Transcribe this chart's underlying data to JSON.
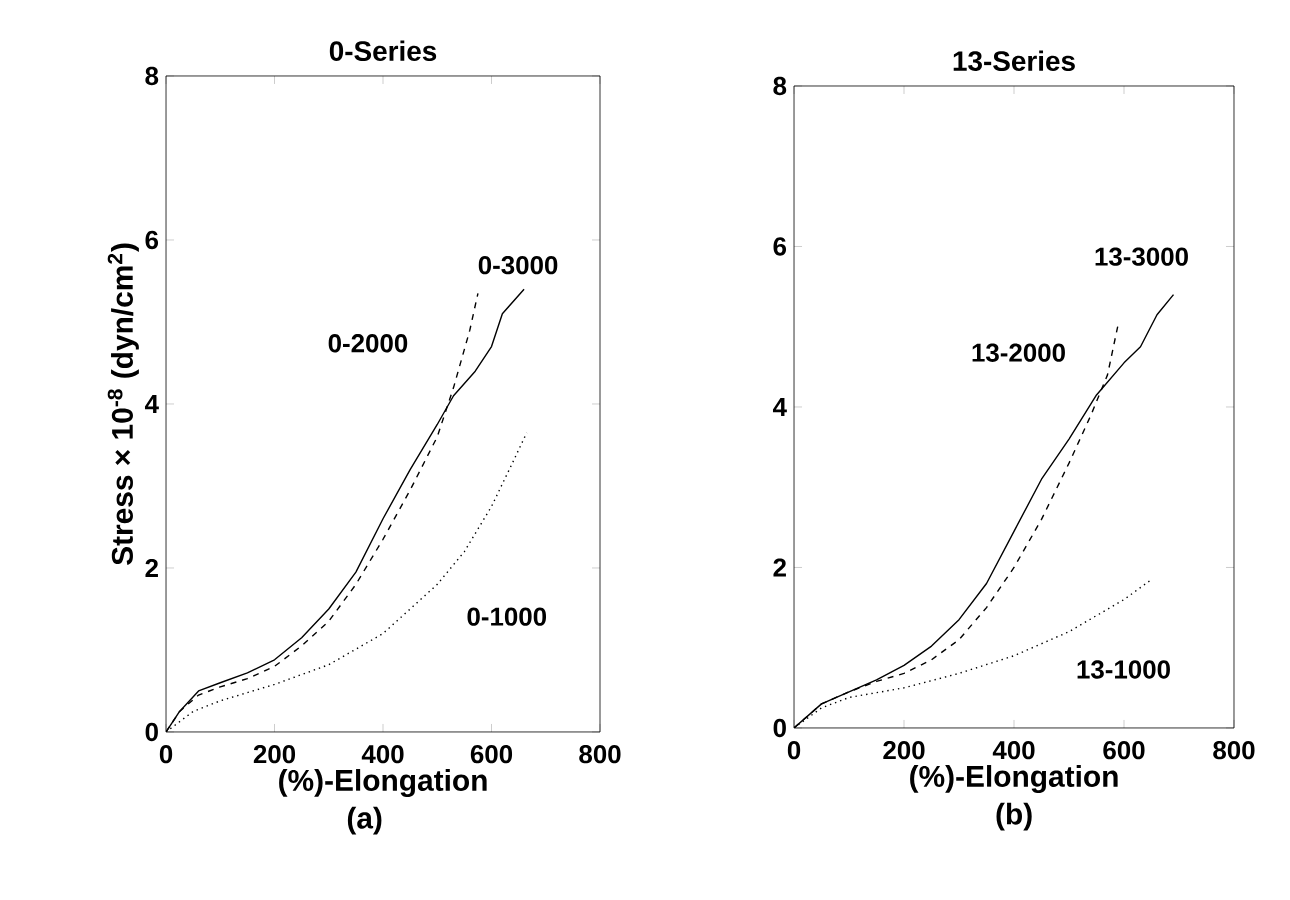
{
  "chart_data": [
    {
      "type": "line",
      "title": "0-Series",
      "xlabel": "(%)-Elongation",
      "ylabel": "Stress × 10$^{-8}$ (dyn/cm$^{2}$)",
      "xlim": [
        0,
        800
      ],
      "ylim": [
        0,
        8
      ],
      "xticks": [
        0,
        200,
        400,
        600,
        800
      ],
      "yticks": [
        0,
        2,
        4,
        6,
        8
      ],
      "grid": false,
      "legend": false,
      "marker": "none",
      "series": [
        {
          "name": "0-3000",
          "color": "#000000",
          "line_style": "solid",
          "x": [
            0,
            25,
            60,
            100,
            150,
            200,
            250,
            300,
            350,
            400,
            450,
            500,
            530,
            570,
            600,
            620,
            660
          ],
          "values": [
            0,
            0.25,
            0.5,
            0.6,
            0.72,
            0.88,
            1.15,
            1.5,
            1.95,
            2.6,
            3.2,
            3.75,
            4.1,
            4.4,
            4.7,
            5.1,
            5.4
          ]
        },
        {
          "name": "0-2000",
          "color": "#000000",
          "line_style": "dashed",
          "x": [
            0,
            25,
            60,
            100,
            150,
            200,
            250,
            300,
            350,
            400,
            450,
            500,
            530,
            560,
            575
          ],
          "values": [
            0,
            0.25,
            0.45,
            0.55,
            0.65,
            0.8,
            1.05,
            1.35,
            1.8,
            2.35,
            2.95,
            3.6,
            4.2,
            4.9,
            5.35
          ]
        },
        {
          "name": "0-1000",
          "color": "#000000",
          "line_style": "dotted",
          "x": [
            0,
            50,
            100,
            200,
            300,
            400,
            500,
            550,
            600,
            640,
            665
          ],
          "values": [
            0,
            0.25,
            0.38,
            0.58,
            0.82,
            1.2,
            1.8,
            2.2,
            2.75,
            3.3,
            3.65
          ]
        }
      ],
      "annotations": [
        "(a)"
      ]
    },
    {
      "type": "line",
      "title": "13-Series",
      "xlabel": "(%)-Elongation",
      "xlim": [
        0,
        800
      ],
      "ylim": [
        0,
        8
      ],
      "xticks": [
        0,
        200,
        400,
        600,
        800
      ],
      "yticks": [
        0,
        2,
        4,
        6,
        8
      ],
      "grid": false,
      "legend": false,
      "marker": "none",
      "series": [
        {
          "name": "13-3000",
          "color": "#000000",
          "line_style": "solid",
          "x": [
            0,
            50,
            100,
            150,
            200,
            250,
            300,
            350,
            400,
            450,
            500,
            550,
            600,
            630,
            660,
            690
          ],
          "values": [
            0,
            0.3,
            0.45,
            0.6,
            0.78,
            1.02,
            1.35,
            1.8,
            2.45,
            3.1,
            3.6,
            4.15,
            4.55,
            4.75,
            5.15,
            5.4
          ]
        },
        {
          "name": "13-2000",
          "color": "#000000",
          "line_style": "dashed",
          "x": [
            0,
            50,
            100,
            150,
            200,
            250,
            300,
            350,
            400,
            450,
            500,
            540,
            570,
            590
          ],
          "values": [
            0,
            0.3,
            0.45,
            0.58,
            0.68,
            0.85,
            1.1,
            1.5,
            2.0,
            2.6,
            3.3,
            3.9,
            4.4,
            5.05
          ]
        },
        {
          "name": "13-1000",
          "color": "#000000",
          "line_style": "dotted",
          "x": [
            0,
            50,
            100,
            200,
            300,
            400,
            500,
            600,
            650
          ],
          "values": [
            0,
            0.25,
            0.38,
            0.5,
            0.68,
            0.9,
            1.2,
            1.6,
            1.85
          ]
        }
      ],
      "annotations": [
        "(b)"
      ]
    }
  ]
}
